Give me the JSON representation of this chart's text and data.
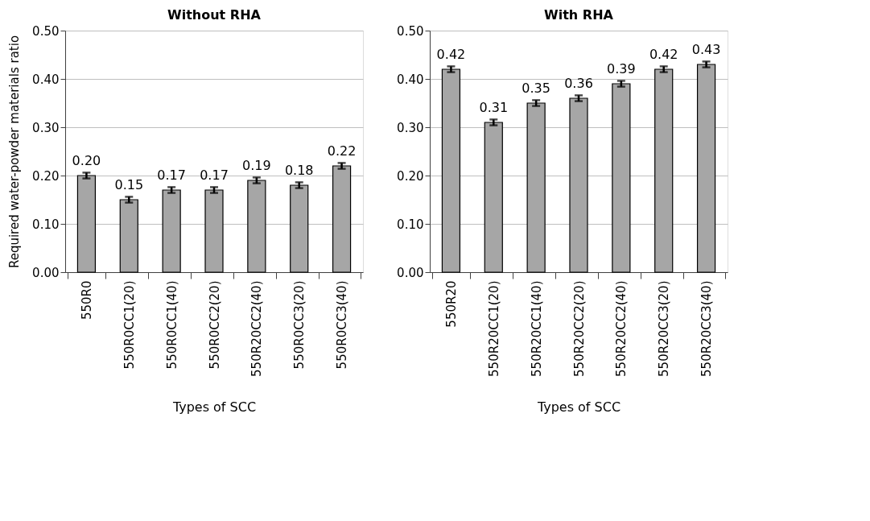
{
  "chart_data": [
    {
      "type": "bar",
      "title": "Without RHA",
      "xlabel": "Types of SCC",
      "ylabel": "Required water-powder materials ratio",
      "categories": [
        "550R0",
        "550R0CC1(20)",
        "550R0CC1(40)",
        "550R0CC2(20)",
        "550R20CC2(40)",
        "550R0CC3(20)",
        "550R0CC3(40)"
      ],
      "values": [
        0.2,
        0.15,
        0.17,
        0.17,
        0.19,
        0.18,
        0.22
      ],
      "value_labels": [
        "0.20",
        "0.15",
        "0.17",
        "0.17",
        "0.19",
        "0.18",
        "0.22"
      ],
      "errors": [
        0.006,
        0.006,
        0.006,
        0.006,
        0.006,
        0.006,
        0.006
      ],
      "color": "#a6a6a6",
      "ylim": [
        0,
        0.5
      ],
      "yticks": [
        {
          "value": 0,
          "label": "0.00"
        },
        {
          "value": 0.1,
          "label": "0.10"
        },
        {
          "value": 0.2,
          "label": "0.20"
        },
        {
          "value": 0.3,
          "label": "0.30"
        },
        {
          "value": 0.4,
          "label": "0.40"
        },
        {
          "value": 0.5,
          "label": "0.50"
        }
      ],
      "grid": "y"
    },
    {
      "type": "bar",
      "title": "With RHA",
      "xlabel": "Types of SCC",
      "categories": [
        "550R20",
        "550R20CC1(20)",
        "550R20CC1(40)",
        "550R20CC2(20)",
        "550R20CC2(40)",
        "550R20CC3(20)",
        "550R20CC3(40)"
      ],
      "values": [
        0.42,
        0.31,
        0.35,
        0.36,
        0.39,
        0.42,
        0.43
      ],
      "value_labels": [
        "0.42",
        "0.31",
        "0.35",
        "0.36",
        "0.39",
        "0.42",
        "0.43"
      ],
      "errors": [
        0.006,
        0.006,
        0.006,
        0.006,
        0.006,
        0.006,
        0.006
      ],
      "color": "#a6a6a6",
      "ylim": [
        0,
        0.5
      ],
      "yticks": [
        {
          "value": 0,
          "label": "0.00"
        },
        {
          "value": 0.1,
          "label": "0.10"
        },
        {
          "value": 0.2,
          "label": "0.20"
        },
        {
          "value": 0.3,
          "label": "0.30"
        },
        {
          "value": 0.4,
          "label": "0.40"
        },
        {
          "value": 0.5,
          "label": "0.50"
        }
      ],
      "grid": "y"
    }
  ]
}
